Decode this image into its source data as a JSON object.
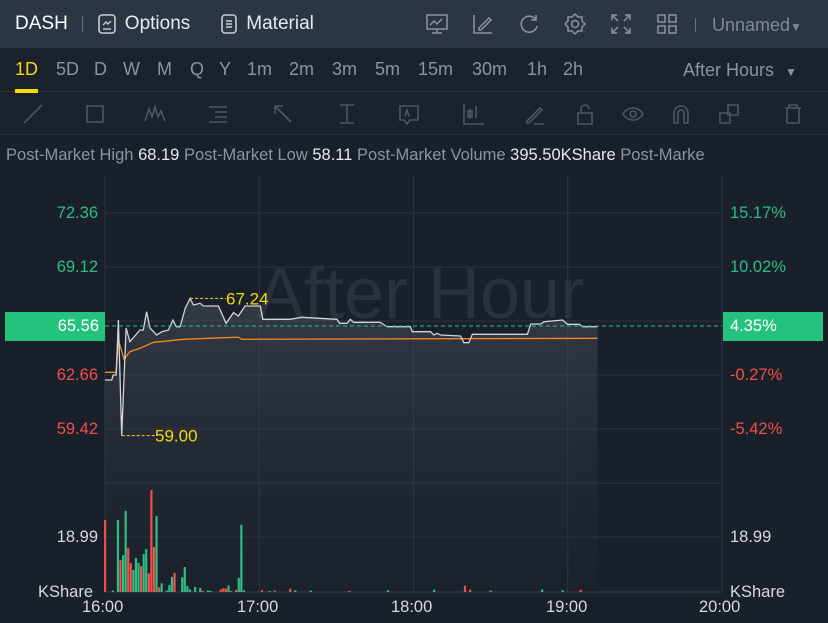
{
  "header": {
    "symbol": "DASH",
    "options": "Options",
    "material": "Material",
    "icons": [
      "chart-indicator-icon",
      "edit-icon",
      "refresh-icon",
      "settings-icon",
      "fullscreen-icon",
      "layout-grid-icon"
    ],
    "layout_name": "Unnamed"
  },
  "tabs": {
    "items": [
      "1D",
      "5D",
      "D",
      "W",
      "M",
      "Q",
      "Y",
      "1m",
      "2m",
      "3m",
      "5m",
      "15m",
      "30m",
      "1h",
      "2h"
    ],
    "active": "1D",
    "session": "After Hours"
  },
  "toolbar": [
    "trend-line-icon",
    "rectangle-icon",
    "wave-icon",
    "fibonacci-icon",
    "arrow-icon",
    "price-range-icon",
    "text-icon",
    "candle-icon",
    "pencil-icon",
    "lock-icon",
    "eye-icon",
    "magnet-icon",
    "copy-icon",
    "trash-icon"
  ],
  "info": {
    "high_label": "Post-Market High",
    "high": "68.19",
    "low_label": "Post-Market Low",
    "low": "58.11",
    "vol_label": "Post-Market Volume",
    "vol": "395.50KShare",
    "more": "Post-Marke"
  },
  "chart_data": {
    "type": "line",
    "watermark": "After Hour",
    "price_axis": [
      "72.36",
      "69.12",
      "65.56",
      "62.66",
      "59.42"
    ],
    "pct_axis": [
      "15.17%",
      "10.02%",
      "4.35%",
      "-0.27%",
      "-5.42%"
    ],
    "current_price": "65.56",
    "current_pct": "4.35%",
    "high_marker": "67.24",
    "low_marker": "59.00",
    "x_ticks": [
      "16:00",
      "17:00",
      "18:00",
      "19:00",
      "20:00"
    ],
    "volume_label": "18.99",
    "volume_unit": "KShare",
    "colors": {
      "up": "#2dbd85",
      "down": "#f0504b",
      "price": "#d0d3d8",
      "avg": "#f08a24",
      "accent": "#f5d90a"
    },
    "price": [
      [
        0,
        62.34
      ],
      [
        2.6,
        62.34
      ],
      [
        3.2,
        62.64
      ],
      [
        4.3,
        62.64
      ],
      [
        5.2,
        65.94
      ],
      [
        6.5,
        59.0
      ],
      [
        8.2,
        65.46
      ],
      [
        9.7,
        64.64
      ],
      [
        13.6,
        65.34
      ],
      [
        14.9,
        65.34
      ],
      [
        16.2,
        66.44
      ],
      [
        17.5,
        65.46
      ],
      [
        20.1,
        65.04
      ],
      [
        22.1,
        65.24
      ],
      [
        24.7,
        65.34
      ],
      [
        26.4,
        65.94
      ],
      [
        27.7,
        65.54
      ],
      [
        29.2,
        65.54
      ],
      [
        31.2,
        66.64
      ],
      [
        33.1,
        67.24
      ],
      [
        34.4,
        66.84
      ],
      [
        37,
        66.94
      ],
      [
        38.3,
        66.78
      ],
      [
        44.1,
        66.78
      ],
      [
        47.1,
        65.74
      ],
      [
        50,
        66.38
      ],
      [
        51.9,
        66.18
      ],
      [
        54.5,
        66.78
      ],
      [
        60.4,
        66.78
      ],
      [
        61.4,
        65.98
      ],
      [
        72,
        65.98
      ],
      [
        76.6,
        66.1
      ],
      [
        90.2,
        65.98
      ],
      [
        91.3,
        65.74
      ],
      [
        94.1,
        65.74
      ],
      [
        95.4,
        65.98
      ],
      [
        96.7,
        65.8
      ],
      [
        107,
        65.8
      ],
      [
        109.7,
        65.54
      ],
      [
        118.8,
        65.54
      ],
      [
        119.5,
        65.24
      ],
      [
        126.6,
        65.24
      ],
      [
        127.9,
        65.04
      ],
      [
        129.2,
        65.14
      ],
      [
        130.5,
        65.04
      ],
      [
        138.3,
        64.98
      ],
      [
        139.6,
        64.58
      ],
      [
        141.5,
        64.58
      ],
      [
        142.9,
        65.08
      ],
      [
        164.3,
        65.08
      ],
      [
        165.6,
        65.7
      ],
      [
        169.5,
        65.7
      ],
      [
        170.8,
        65.84
      ],
      [
        178,
        65.94
      ],
      [
        179.9,
        65.68
      ],
      [
        184.5,
        65.68
      ],
      [
        185.8,
        65.54
      ],
      [
        191.6,
        65.54
      ]
    ],
    "average": [
      [
        0,
        62.8
      ],
      [
        4.3,
        62.8
      ],
      [
        5.2,
        64.74
      ],
      [
        7.4,
        63.58
      ],
      [
        9.7,
        64.04
      ],
      [
        13.6,
        64.24
      ],
      [
        18.9,
        64.6
      ],
      [
        30.5,
        64.78
      ],
      [
        50,
        64.9
      ],
      [
        52,
        64.9
      ],
      [
        53.2,
        64.78
      ],
      [
        191.6,
        64.84
      ]
    ],
    "volume": [
      [
        0,
        24.9,
        "d"
      ],
      [
        3,
        0.5,
        "u"
      ],
      [
        5,
        24.9,
        "u"
      ],
      [
        6,
        11,
        "d"
      ],
      [
        7,
        12.7,
        "u"
      ],
      [
        8,
        28,
        "u"
      ],
      [
        9,
        15.2,
        "d"
      ],
      [
        10,
        10,
        "d"
      ],
      [
        11,
        7.6,
        "u"
      ],
      [
        12,
        11.7,
        "u"
      ],
      [
        13,
        10,
        "u"
      ],
      [
        14,
        8.9,
        "d"
      ],
      [
        15,
        13.1,
        "u"
      ],
      [
        16,
        14.8,
        "u"
      ],
      [
        17,
        6.4,
        "d"
      ],
      [
        18,
        35.2,
        "d"
      ],
      [
        19,
        15.5,
        "d"
      ],
      [
        20,
        26.2,
        "u"
      ],
      [
        21,
        1.6,
        "d"
      ],
      [
        22,
        3,
        "u"
      ],
      [
        24,
        0.5,
        "u"
      ],
      [
        25,
        2.4,
        "u"
      ],
      [
        26,
        5.2,
        "u"
      ],
      [
        27,
        6.6,
        "d"
      ],
      [
        30,
        5.1,
        "u"
      ],
      [
        31,
        8.6,
        "u"
      ],
      [
        32,
        2.1,
        "u"
      ],
      [
        33,
        0.9,
        "u"
      ],
      [
        35,
        1.7,
        "u"
      ],
      [
        37,
        1.4,
        "u"
      ],
      [
        38,
        0.4,
        "d"
      ],
      [
        40,
        0.5,
        "u"
      ],
      [
        41,
        0.4,
        "u"
      ],
      [
        45,
        0.9,
        "d"
      ],
      [
        46,
        1.3,
        "d"
      ],
      [
        47,
        1.2,
        "d"
      ],
      [
        48,
        2.3,
        "u"
      ],
      [
        49,
        0.3,
        "u"
      ],
      [
        51,
        0.7,
        "d"
      ],
      [
        52,
        4.9,
        "u"
      ],
      [
        53,
        23.2,
        "u"
      ],
      [
        54,
        0.6,
        "u"
      ],
      [
        61,
        0.6,
        "d"
      ],
      [
        64,
        0.3,
        "u"
      ],
      [
        66,
        0.5,
        "d"
      ],
      [
        72,
        1.1,
        "d"
      ],
      [
        74,
        0.6,
        "u"
      ],
      [
        80,
        0.5,
        "u"
      ],
      [
        95,
        0.4,
        "d"
      ],
      [
        110,
        0.6,
        "u"
      ],
      [
        128,
        0.8,
        "u"
      ],
      [
        140,
        2.2,
        "d"
      ],
      [
        142,
        0.8,
        "d"
      ],
      [
        150,
        0.5,
        "u"
      ],
      [
        170,
        0.9,
        "u"
      ],
      [
        178,
        0.6,
        "u"
      ],
      [
        185,
        0.7,
        "d"
      ]
    ]
  }
}
